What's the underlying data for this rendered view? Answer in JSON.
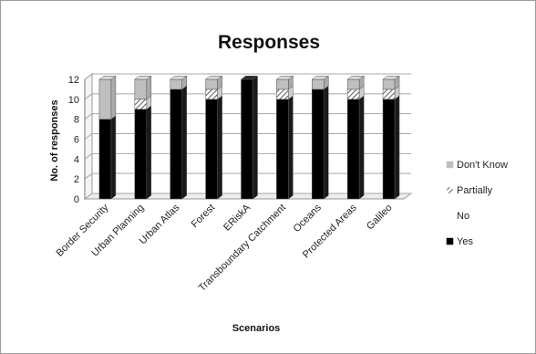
{
  "chart_data": {
    "type": "bar",
    "stacked": true,
    "title": "Responses",
    "xlabel": "Scenarios",
    "ylabel": "No. of responses",
    "ylim": [
      0,
      12
    ],
    "yticks": [
      0,
      2,
      4,
      6,
      8,
      10,
      12
    ],
    "grid": true,
    "legend_position": "right",
    "categories": [
      "Border Security",
      "Urban Planning",
      "Urban Atlas",
      "Forest",
      "ERiskA",
      "Transboundary Catchment",
      "Oceans",
      "Protected Areas",
      "Galileo"
    ],
    "series": [
      {
        "name": "Yes",
        "color": "#000000",
        "values": [
          8,
          9,
          11,
          10,
          12,
          10,
          11,
          10,
          10
        ]
      },
      {
        "name": "No",
        "color": "#ffffff",
        "values": [
          0,
          0,
          0,
          0,
          0,
          0,
          0,
          0,
          0
        ]
      },
      {
        "name": "Partially",
        "color": "#666666",
        "values": [
          0,
          1,
          0,
          1,
          0,
          1,
          0,
          1,
          1
        ]
      },
      {
        "name": "Don't Know",
        "color": "#bfbfbf",
        "values": [
          4,
          2,
          1,
          1,
          0,
          1,
          1,
          1,
          1
        ]
      }
    ],
    "legend_order": [
      "Don't Know",
      "Partially",
      "No",
      "Yes"
    ]
  }
}
